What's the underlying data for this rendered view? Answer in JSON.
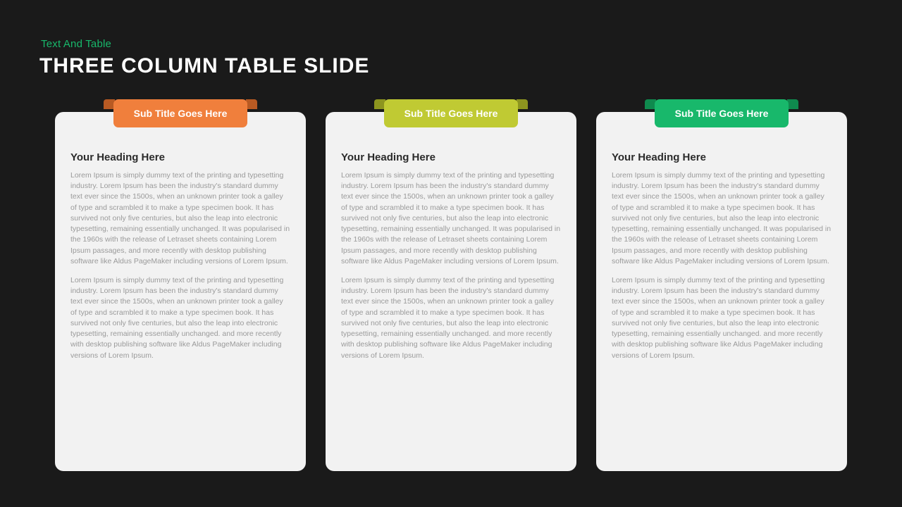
{
  "colors": {
    "background": "#1a1a1a",
    "accent": "#18b86b",
    "card_bg": "#f2f2f2",
    "body_text": "#9a9a9a",
    "heading_text": "#2b2b2b"
  },
  "typography": {
    "pretitle_fontsize": 15,
    "title_fontsize": 30,
    "ribbon_fontsize": 14,
    "heading_fontsize": 15,
    "body_fontsize": 10.5
  },
  "layout": {
    "type": "three-column-cards",
    "card_border_radius": 12,
    "column_gap": 28
  },
  "pretitle": "Text And Table",
  "title": "THREE COLUMN TABLE SLIDE",
  "columns": [
    {
      "ribbon_label": "Sub Title Goes Here",
      "ribbon_color": "#f07f3c",
      "ribbon_fold_color": "#b85a23",
      "heading": "Your Heading Here",
      "para1": "Lorem Ipsum is simply dummy text of the printing and typesetting industry. Lorem Ipsum has been the industry's standard dummy text ever since the 1500s, when an unknown printer took a galley of type and scrambled it to make a type specimen book. It has survived not only five centuries, but also the leap into electronic typesetting, remaining essentially unchanged. It was popularised in the 1960s with the release of Letraset sheets containing Lorem Ipsum passages, and more recently with desktop publishing software like Aldus PageMaker including versions of Lorem Ipsum.",
      "para2": "Lorem Ipsum is simply dummy text of the printing and typesetting industry. Lorem Ipsum has been the industry's standard dummy text ever since the 1500s, when an unknown printer took a galley of type and scrambled it to make a type specimen book. It has survived not only five centuries, but also the leap into electronic typesetting, remaining essentially unchanged. and more recently with desktop publishing software like Aldus PageMaker including versions of Lorem Ipsum."
    },
    {
      "ribbon_label": "Sub Title Goes Here",
      "ribbon_color": "#c0ca33",
      "ribbon_fold_color": "#8d951f",
      "heading": "Your Heading Here",
      "para1": "Lorem Ipsum is simply dummy text of the printing and typesetting industry. Lorem Ipsum has been the industry's standard dummy text ever since the 1500s, when an unknown printer took a galley of type and scrambled it to make a type specimen book. It has survived not only five centuries, but also the leap into electronic typesetting, remaining essentially unchanged. It was popularised in the 1960s with the release of Letraset sheets containing Lorem Ipsum passages, and more recently with desktop publishing software like Aldus PageMaker including versions of Lorem Ipsum.",
      "para2": "Lorem Ipsum is simply dummy text of the printing and typesetting industry. Lorem Ipsum has been the industry's standard dummy text ever since the 1500s, when an unknown printer took a galley of type and scrambled it to make a type specimen book. It has survived not only five centuries, but also the leap into electronic typesetting, remaining essentially unchanged. and more recently with desktop publishing software like Aldus PageMaker including versions of Lorem Ipsum."
    },
    {
      "ribbon_label": "Sub Title Goes Here",
      "ribbon_color": "#18b86b",
      "ribbon_fold_color": "#0f8a4e",
      "heading": "Your Heading Here",
      "para1": "Lorem Ipsum is simply dummy text of the printing and typesetting industry. Lorem Ipsum has been the industry's standard dummy text ever since the 1500s, when an unknown printer took a galley of type and scrambled it to make a type specimen book. It has survived not only five centuries, but also the leap into electronic typesetting, remaining essentially unchanged. It was popularised in the 1960s with the release of Letraset sheets containing Lorem Ipsum passages, and more recently with desktop publishing software like Aldus PageMaker including versions of Lorem Ipsum.",
      "para2": "Lorem Ipsum is simply dummy text of the printing and typesetting industry. Lorem Ipsum has been the industry's standard dummy text ever since the 1500s, when an unknown printer took a galley of type and scrambled it to make a type specimen book. It has survived not only five centuries, but also the leap into electronic typesetting, remaining essentially unchanged. and more recently with desktop publishing software like Aldus PageMaker including versions of Lorem Ipsum."
    }
  ]
}
